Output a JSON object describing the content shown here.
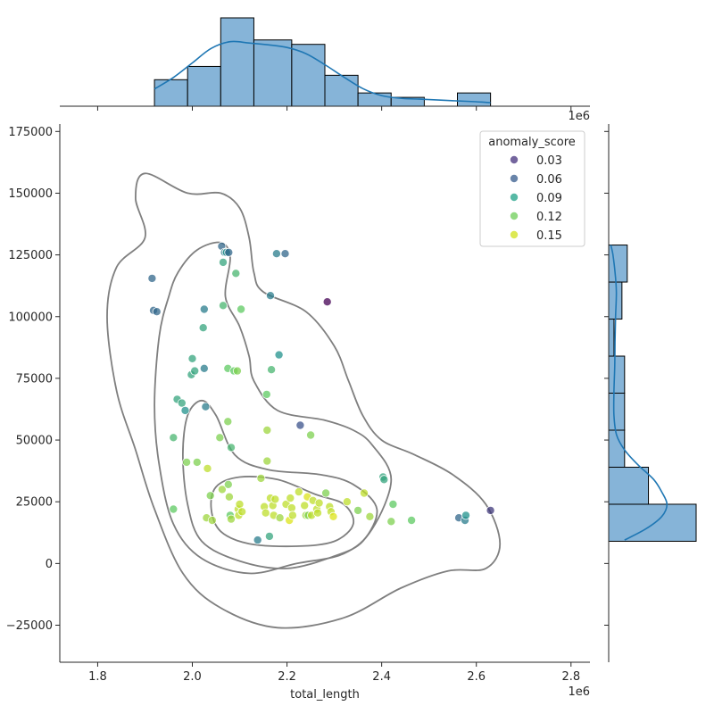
{
  "chart_data": {
    "type": "scatter",
    "subtype": "joint plot (scatter + KDE contours + marginal histograms)",
    "xlabel": "total_length",
    "ylabel": "",
    "x_offset_label": "1e6",
    "marginal_offset_label": "1e6",
    "xlim": [
      1.72,
      2.84
    ],
    "ylim": [
      -40000,
      178000
    ],
    "x_ticks": [
      1.8,
      2.0,
      2.2,
      2.4,
      2.6,
      2.8
    ],
    "x_tick_labels": [
      "1.8",
      "2.0",
      "2.2",
      "2.4",
      "2.6",
      "2.8"
    ],
    "y_ticks": [
      -25000,
      0,
      25000,
      50000,
      75000,
      100000,
      125000,
      150000,
      175000
    ],
    "y_tick_labels": [
      "−25000",
      "0",
      "25000",
      "50000",
      "75000",
      "100000",
      "125000",
      "150000",
      "175000"
    ],
    "grid": false,
    "hue_variable": "anomaly_score",
    "legend": {
      "title": "anomaly_score",
      "placement": "top-right",
      "entries": [
        {
          "label": "0.03",
          "color": "#46317e"
        },
        {
          "label": "0.06",
          "color": "#365b8c"
        },
        {
          "label": "0.09",
          "color": "#1fa187"
        },
        {
          "label": "0.12",
          "color": "#6ece58"
        },
        {
          "label": "0.15",
          "color": "#d2e21b"
        }
      ]
    },
    "points": [
      {
        "x": 1.915,
        "y": 115500,
        "c": 0.06
      },
      {
        "x": 1.918,
        "y": 102500,
        "c": 0.06
      },
      {
        "x": 1.925,
        "y": 102000,
        "c": 0.06
      },
      {
        "x": 1.96,
        "y": 51000,
        "c": 0.1
      },
      {
        "x": 1.96,
        "y": 22000,
        "c": 0.11
      },
      {
        "x": 1.968,
        "y": 66500,
        "c": 0.09
      },
      {
        "x": 1.978,
        "y": 65000,
        "c": 0.09
      },
      {
        "x": 1.985,
        "y": 62000,
        "c": 0.08
      },
      {
        "x": 1.988,
        "y": 41000,
        "c": 0.12
      },
      {
        "x": 1.998,
        "y": 76500,
        "c": 0.09
      },
      {
        "x": 2.0,
        "y": 83000,
        "c": 0.09
      },
      {
        "x": 2.005,
        "y": 78000,
        "c": 0.09
      },
      {
        "x": 2.01,
        "y": 41000,
        "c": 0.12
      },
      {
        "x": 2.023,
        "y": 95500,
        "c": 0.09
      },
      {
        "x": 2.025,
        "y": 103000,
        "c": 0.07
      },
      {
        "x": 2.025,
        "y": 79000,
        "c": 0.07
      },
      {
        "x": 2.028,
        "y": 63500,
        "c": 0.07
      },
      {
        "x": 2.03,
        "y": 18500,
        "c": 0.13
      },
      {
        "x": 2.032,
        "y": 38500,
        "c": 0.14
      },
      {
        "x": 2.038,
        "y": 27500,
        "c": 0.12
      },
      {
        "x": 2.042,
        "y": 17500,
        "c": 0.13
      },
      {
        "x": 2.058,
        "y": 51000,
        "c": 0.12
      },
      {
        "x": 2.062,
        "y": 128500,
        "c": 0.06
      },
      {
        "x": 2.063,
        "y": 30000,
        "c": 0.13
      },
      {
        "x": 2.065,
        "y": 122000,
        "c": 0.09
      },
      {
        "x": 2.065,
        "y": 104500,
        "c": 0.1
      },
      {
        "x": 2.068,
        "y": 126000,
        "c": 0.07
      },
      {
        "x": 2.072,
        "y": 126000,
        "c": 0.08
      },
      {
        "x": 2.075,
        "y": 79000,
        "c": 0.11
      },
      {
        "x": 2.075,
        "y": 57500,
        "c": 0.12
      },
      {
        "x": 2.076,
        "y": 32000,
        "c": 0.12
      },
      {
        "x": 2.077,
        "y": 126000,
        "c": 0.06
      },
      {
        "x": 2.078,
        "y": 27000,
        "c": 0.13
      },
      {
        "x": 2.08,
        "y": 19500,
        "c": 0.11
      },
      {
        "x": 2.082,
        "y": 47000,
        "c": 0.1
      },
      {
        "x": 2.082,
        "y": 18000,
        "c": 0.13
      },
      {
        "x": 2.088,
        "y": 78000,
        "c": 0.11
      },
      {
        "x": 2.092,
        "y": 117500,
        "c": 0.1
      },
      {
        "x": 2.095,
        "y": 78000,
        "c": 0.12
      },
      {
        "x": 2.097,
        "y": 22000,
        "c": 0.14
      },
      {
        "x": 2.098,
        "y": 19500,
        "c": 0.14
      },
      {
        "x": 2.1,
        "y": 24000,
        "c": 0.14
      },
      {
        "x": 2.103,
        "y": 103000,
        "c": 0.11
      },
      {
        "x": 2.105,
        "y": 21000,
        "c": 0.14
      },
      {
        "x": 2.138,
        "y": 9500,
        "c": 0.07
      },
      {
        "x": 2.145,
        "y": 34500,
        "c": 0.13
      },
      {
        "x": 2.152,
        "y": 23000,
        "c": 0.14
      },
      {
        "x": 2.155,
        "y": 20500,
        "c": 0.14
      },
      {
        "x": 2.157,
        "y": 68500,
        "c": 0.11
      },
      {
        "x": 2.158,
        "y": 54000,
        "c": 0.13
      },
      {
        "x": 2.158,
        "y": 41500,
        "c": 0.13
      },
      {
        "x": 2.163,
        "y": 11000,
        "c": 0.09
      },
      {
        "x": 2.165,
        "y": 108500,
        "c": 0.07
      },
      {
        "x": 2.165,
        "y": 26500,
        "c": 0.14
      },
      {
        "x": 2.167,
        "y": 78500,
        "c": 0.1
      },
      {
        "x": 2.17,
        "y": 23500,
        "c": 0.14
      },
      {
        "x": 2.172,
        "y": 19500,
        "c": 0.14
      },
      {
        "x": 2.175,
        "y": 26000,
        "c": 0.14
      },
      {
        "x": 2.178,
        "y": 125500,
        "c": 0.07
      },
      {
        "x": 2.183,
        "y": 84500,
        "c": 0.08
      },
      {
        "x": 2.185,
        "y": 18500,
        "c": 0.13
      },
      {
        "x": 2.196,
        "y": 125500,
        "c": 0.06
      },
      {
        "x": 2.198,
        "y": 24000,
        "c": 0.14
      },
      {
        "x": 2.205,
        "y": 17500,
        "c": 0.15
      },
      {
        "x": 2.207,
        "y": 26500,
        "c": 0.14
      },
      {
        "x": 2.21,
        "y": 22500,
        "c": 0.14
      },
      {
        "x": 2.212,
        "y": 19500,
        "c": 0.14
      },
      {
        "x": 2.225,
        "y": 29000,
        "c": 0.14
      },
      {
        "x": 2.228,
        "y": 56000,
        "c": 0.05
      },
      {
        "x": 2.237,
        "y": 23500,
        "c": 0.14
      },
      {
        "x": 2.24,
        "y": 19500,
        "c": 0.13
      },
      {
        "x": 2.243,
        "y": 27000,
        "c": 0.15
      },
      {
        "x": 2.245,
        "y": 19500,
        "c": 0.12
      },
      {
        "x": 2.25,
        "y": 52000,
        "c": 0.12
      },
      {
        "x": 2.252,
        "y": 19500,
        "c": 0.14
      },
      {
        "x": 2.255,
        "y": 25500,
        "c": 0.14
      },
      {
        "x": 2.263,
        "y": 22000,
        "c": 0.14
      },
      {
        "x": 2.265,
        "y": 20500,
        "c": 0.14
      },
      {
        "x": 2.268,
        "y": 24500,
        "c": 0.14
      },
      {
        "x": 2.282,
        "y": 28500,
        "c": 0.12
      },
      {
        "x": 2.285,
        "y": 106000,
        "c": 0.02
      },
      {
        "x": 2.29,
        "y": 23000,
        "c": 0.14
      },
      {
        "x": 2.293,
        "y": 21000,
        "c": 0.14
      },
      {
        "x": 2.298,
        "y": 19000,
        "c": 0.15
      },
      {
        "x": 2.327,
        "y": 25000,
        "c": 0.14
      },
      {
        "x": 2.35,
        "y": 21500,
        "c": 0.12
      },
      {
        "x": 2.363,
        "y": 28500,
        "c": 0.14
      },
      {
        "x": 2.375,
        "y": 19000,
        "c": 0.13
      },
      {
        "x": 2.403,
        "y": 35000,
        "c": 0.09
      },
      {
        "x": 2.405,
        "y": 34000,
        "c": 0.09
      },
      {
        "x": 2.42,
        "y": 17000,
        "c": 0.12
      },
      {
        "x": 2.424,
        "y": 24000,
        "c": 0.11
      },
      {
        "x": 2.463,
        "y": 17500,
        "c": 0.11
      },
      {
        "x": 2.563,
        "y": 18500,
        "c": 0.06
      },
      {
        "x": 2.576,
        "y": 17500,
        "c": 0.07
      },
      {
        "x": 2.578,
        "y": 19500,
        "c": 0.08
      },
      {
        "x": 2.63,
        "y": 21500,
        "c": 0.04
      }
    ],
    "kde_contours": [
      [
        [
          1.9,
          158000
        ],
        [
          1.99,
          150000
        ],
        [
          2.06,
          150000
        ],
        [
          2.1,
          144000
        ],
        [
          2.12,
          132000
        ],
        [
          2.13,
          118000
        ],
        [
          2.15,
          110000
        ],
        [
          2.24,
          102000
        ],
        [
          2.3,
          88000
        ],
        [
          2.33,
          74000
        ],
        [
          2.36,
          60000
        ],
        [
          2.4,
          50000
        ],
        [
          2.47,
          44000
        ],
        [
          2.55,
          36000
        ],
        [
          2.62,
          24000
        ],
        [
          2.65,
          8000
        ],
        [
          2.62,
          -2000
        ],
        [
          2.54,
          -3000
        ],
        [
          2.44,
          -10000
        ],
        [
          2.32,
          -22000
        ],
        [
          2.18,
          -26000
        ],
        [
          2.06,
          -18000
        ],
        [
          1.98,
          -4000
        ],
        [
          1.92,
          22000
        ],
        [
          1.88,
          46000
        ],
        [
          1.84,
          70000
        ],
        [
          1.82,
          100000
        ],
        [
          1.84,
          120000
        ],
        [
          1.9,
          132000
        ],
        [
          1.88,
          148000
        ]
      ],
      [
        [
          1.97,
          118000
        ],
        [
          2.01,
          127000
        ],
        [
          2.06,
          130000
        ],
        [
          2.08,
          124000
        ],
        [
          2.07,
          108000
        ],
        [
          2.1,
          96000
        ],
        [
          2.12,
          84000
        ],
        [
          2.13,
          74000
        ],
        [
          2.18,
          62000
        ],
        [
          2.28,
          58000
        ],
        [
          2.34,
          54000
        ],
        [
          2.38,
          48000
        ],
        [
          2.42,
          34000
        ],
        [
          2.38,
          14000
        ],
        [
          2.32,
          4000
        ],
        [
          2.22,
          0
        ],
        [
          2.12,
          -4000
        ],
        [
          2.02,
          2000
        ],
        [
          1.96,
          16000
        ],
        [
          1.93,
          40000
        ],
        [
          1.92,
          64000
        ],
        [
          1.93,
          92000
        ],
        [
          1.95,
          108000
        ]
      ],
      [
        [
          1.99,
          60000
        ],
        [
          2.02,
          66000
        ],
        [
          2.05,
          60000
        ],
        [
          2.09,
          44000
        ],
        [
          2.16,
          38000
        ],
        [
          2.27,
          36000
        ],
        [
          2.34,
          32000
        ],
        [
          2.39,
          22000
        ],
        [
          2.36,
          9000
        ],
        [
          2.3,
          3000
        ],
        [
          2.2,
          -2000
        ],
        [
          2.1,
          1000
        ],
        [
          2.02,
          9000
        ],
        [
          1.99,
          24000
        ],
        [
          1.98,
          44000
        ]
      ],
      [
        [
          2.05,
          31000
        ],
        [
          2.1,
          35000
        ],
        [
          2.18,
          34000
        ],
        [
          2.26,
          28000
        ],
        [
          2.32,
          24000
        ],
        [
          2.34,
          16000
        ],
        [
          2.3,
          9000
        ],
        [
          2.22,
          7000
        ],
        [
          2.12,
          8000
        ],
        [
          2.06,
          13000
        ],
        [
          2.04,
          22000
        ]
      ]
    ],
    "marginal_x": {
      "type": "histogram",
      "bins": [
        {
          "from": 1.92,
          "to": 1.99,
          "count": 6
        },
        {
          "from": 1.99,
          "to": 2.06,
          "count": 9
        },
        {
          "from": 2.06,
          "to": 2.13,
          "count": 20
        },
        {
          "from": 2.13,
          "to": 2.21,
          "count": 15
        },
        {
          "from": 2.21,
          "to": 2.28,
          "count": 14
        },
        {
          "from": 2.28,
          "to": 2.35,
          "count": 7
        },
        {
          "from": 2.35,
          "to": 2.42,
          "count": 3
        },
        {
          "from": 2.42,
          "to": 2.49,
          "count": 2
        },
        {
          "from": 2.49,
          "to": 2.56,
          "count": 0
        },
        {
          "from": 2.56,
          "to": 2.63,
          "count": 3
        }
      ],
      "kde": [
        [
          1.92,
          3.9
        ],
        [
          1.96,
          6.5
        ],
        [
          2.0,
          9.8
        ],
        [
          2.04,
          13.1
        ],
        [
          2.08,
          14.6
        ],
        [
          2.12,
          14.3
        ],
        [
          2.16,
          13.9
        ],
        [
          2.2,
          13.3
        ],
        [
          2.24,
          11.9
        ],
        [
          2.28,
          9.4
        ],
        [
          2.32,
          6.6
        ],
        [
          2.36,
          4.0
        ],
        [
          2.4,
          2.4
        ],
        [
          2.44,
          1.8
        ],
        [
          2.48,
          1.6
        ],
        [
          2.52,
          1.4
        ],
        [
          2.56,
          1.2
        ],
        [
          2.6,
          1.0
        ],
        [
          2.63,
          0.8
        ]
      ]
    },
    "marginal_y": {
      "type": "histogram",
      "bins": [
        {
          "from": 9000,
          "to": 24000,
          "count": 33
        },
        {
          "from": 24000,
          "to": 39000,
          "count": 15
        },
        {
          "from": 39000,
          "to": 54000,
          "count": 6
        },
        {
          "from": 54000,
          "to": 69000,
          "count": 6
        },
        {
          "from": 69000,
          "to": 84000,
          "count": 6
        },
        {
          "from": 84000,
          "to": 99000,
          "count": 2
        },
        {
          "from": 99000,
          "to": 114000,
          "count": 5
        },
        {
          "from": 114000,
          "to": 129000,
          "count": 7
        }
      ],
      "kde": [
        [
          9500,
          6
        ],
        [
          14000,
          14
        ],
        [
          19000,
          20
        ],
        [
          24000,
          22
        ],
        [
          29000,
          20
        ],
        [
          34000,
          17
        ],
        [
          40000,
          11
        ],
        [
          46000,
          6
        ],
        [
          52000,
          3
        ],
        [
          60000,
          2
        ],
        [
          70000,
          2
        ],
        [
          80000,
          2.3
        ],
        [
          90000,
          2.4
        ],
        [
          100000,
          2.6
        ],
        [
          110000,
          2.9
        ],
        [
          118000,
          2.4
        ],
        [
          125000,
          1.6
        ],
        [
          129000,
          0.8
        ]
      ]
    }
  }
}
